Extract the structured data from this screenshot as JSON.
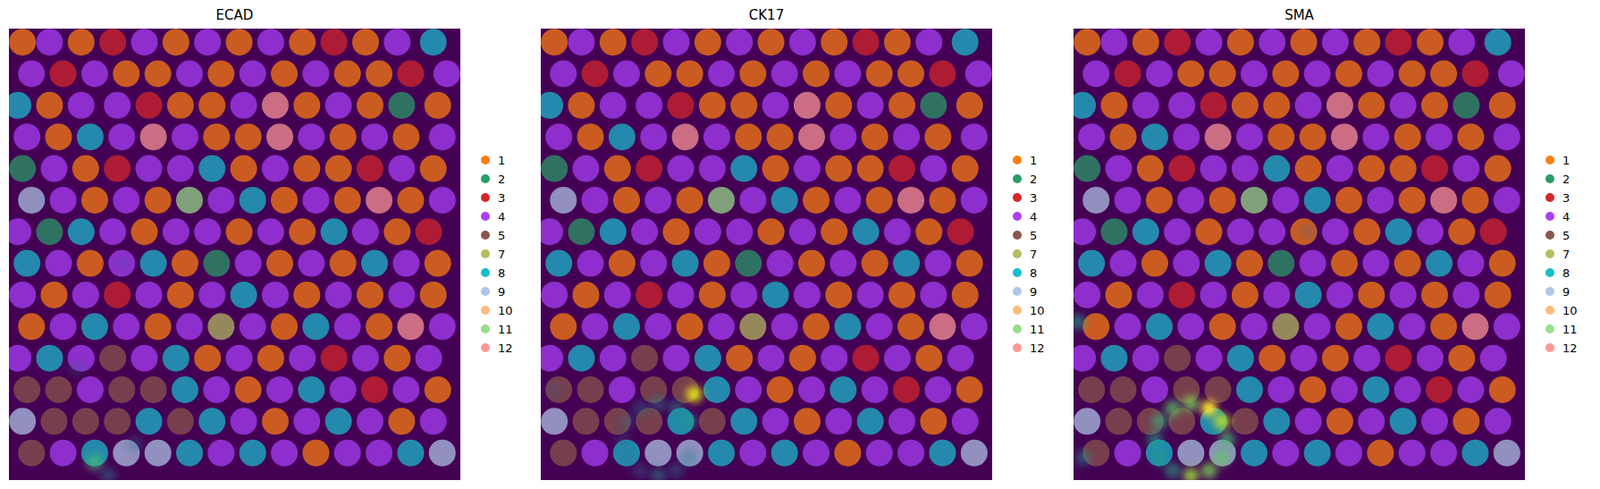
{
  "chart_data": {
    "type": "scatter",
    "xlim": [
      0,
      100
    ],
    "ylim": [
      0,
      100
    ],
    "tick_labels": false,
    "legend": "right",
    "panels": [
      {
        "title": "ECAD",
        "signal": {
          "x": [
            19,
            15,
            25,
            22,
            28
          ],
          "y": [
            96,
            75,
            52,
            99,
            92
          ],
          "intensity": [
            0.7,
            0.3,
            0.25,
            0.45,
            0.35
          ]
        }
      },
      {
        "title": "CK17",
        "signal": {
          "x": [
            34,
            32.9,
            30,
            26,
            22,
            19.1,
            18,
            19.1,
            22,
            26,
            30,
            32.9,
            3
          ],
          "y": [
            81,
            95,
            97.9,
            99,
            97.9,
            95,
            91,
            87,
            84.1,
            83,
            84.1,
            87,
            80
          ],
          "intensity": [
            0.95,
            0.45,
            0.4,
            0.5,
            0.35,
            0.35,
            0.3,
            0.35,
            0.4,
            0.45,
            0.5,
            0.55,
            0.3
          ]
        }
      },
      {
        "title": "SMA",
        "signal": {
          "x": [
            34,
            32.9,
            30,
            26,
            22,
            19.1,
            18,
            19.1,
            22,
            26,
            30,
            32.9,
            1,
            2,
            52
          ],
          "y": [
            91,
            95,
            97.9,
            99,
            97.9,
            95,
            91,
            87,
            84.1,
            83,
            84.1,
            87,
            65,
            95,
            45
          ],
          "intensity": [
            0.7,
            0.75,
            0.8,
            0.85,
            0.6,
            0.55,
            0.6,
            0.65,
            0.75,
            0.8,
            1.0,
            0.9,
            0.6,
            0.5,
            0.3
          ]
        }
      }
    ],
    "series": [
      {
        "name": "1",
        "color": "#ff7f0e",
        "x": [
          3,
          16,
          37,
          51,
          65,
          79,
          26,
          33,
          47,
          61,
          75,
          82,
          9,
          38,
          45,
          66,
          80,
          95,
          11,
          46,
          53,
          74,
          88,
          17,
          52,
          66,
          73,
          94,
          19,
          33,
          61,
          75,
          89,
          30,
          51,
          65,
          86,
          18,
          39,
          60,
          74,
          95,
          10,
          38,
          66,
          80,
          94,
          5,
          33,
          61,
          82,
          44,
          58,
          86,
          53,
          95,
          59,
          87,
          68
        ],
        "y": [
          3,
          3,
          3,
          3,
          3,
          3,
          10,
          10,
          10,
          10,
          10,
          10,
          17,
          17,
          17,
          17,
          17,
          17,
          24,
          24,
          24,
          24,
          24,
          31,
          31,
          31,
          31,
          31,
          38,
          38,
          38,
          38,
          38,
          45,
          45,
          45,
          45,
          52,
          52,
          52,
          52,
          52,
          59,
          59,
          59,
          59,
          59,
          66,
          66,
          66,
          66,
          73,
          73,
          73,
          80,
          80,
          87,
          87,
          94
        ]
      },
      {
        "name": "2",
        "color": "#279e68",
        "x": [
          87,
          3,
          9,
          46
        ],
        "y": [
          17,
          31,
          45,
          52
        ]
      },
      {
        "name": "3",
        "color": "#d62728",
        "x": [
          23,
          72,
          12,
          89,
          31,
          24,
          80,
          93,
          24,
          72,
          81
        ],
        "y": [
          3,
          3,
          10,
          10,
          17,
          31,
          31,
          45,
          59,
          73,
          80
        ]
      },
      {
        "name": "4",
        "color": "#aa40fc",
        "x": [
          9,
          30,
          44,
          58,
          86,
          5,
          19,
          40,
          54,
          68,
          97,
          16,
          24,
          52,
          73,
          4,
          25,
          39,
          67,
          81,
          96,
          10,
          31,
          38,
          59,
          87,
          12,
          26,
          47,
          68,
          96,
          2,
          23,
          37,
          44,
          58,
          79,
          11,
          25,
          53,
          67,
          88,
          3,
          17,
          31,
          45,
          59,
          73,
          87,
          12,
          26,
          40,
          54,
          75,
          96,
          2,
          16,
          30,
          51,
          65,
          79,
          93,
          18,
          46,
          60,
          74,
          88,
          52,
          66,
          80,
          94,
          12,
          47,
          61,
          75,
          82
        ],
        "y": [
          3,
          3,
          3,
          3,
          3,
          10,
          10,
          10,
          10,
          10,
          10,
          17,
          17,
          17,
          17,
          24,
          24,
          24,
          24,
          24,
          24,
          31,
          31,
          31,
          31,
          31,
          38,
          38,
          38,
          38,
          38,
          45,
          45,
          45,
          45,
          45,
          45,
          52,
          52,
          52,
          52,
          52,
          59,
          59,
          59,
          59,
          59,
          59,
          59,
          66,
          66,
          66,
          66,
          66,
          66,
          73,
          73,
          73,
          73,
          73,
          73,
          73,
          80,
          80,
          80,
          80,
          80,
          87,
          87,
          87,
          87,
          94,
          94,
          94,
          94,
          94
        ]
      },
      {
        "name": "5",
        "color": "#8c564b",
        "x": [
          23,
          4,
          11,
          25,
          32,
          10,
          17,
          24,
          38,
          5
        ],
        "y": [
          73,
          80,
          80,
          80,
          80,
          87,
          87,
          87,
          87,
          94
        ]
      },
      {
        "name": "7",
        "color": "#b5bd61",
        "x": [
          47
        ],
        "y": [
          66
        ]
      },
      {
        "name": "8",
        "color": "#17becf",
        "x": [
          94,
          2,
          18,
          45,
          54,
          16,
          72,
          4,
          32,
          81,
          52,
          19,
          68,
          9,
          37,
          39,
          67,
          31,
          45,
          73,
          19,
          40,
          54,
          89
        ],
        "y": [
          3,
          17,
          24,
          31,
          38,
          45,
          45,
          52,
          52,
          52,
          59,
          66,
          66,
          73,
          73,
          80,
          80,
          87,
          87,
          87,
          94,
          94,
          94,
          94
        ]
      },
      {
        "name": "9",
        "color": "#aec7e8",
        "x": [
          5,
          3,
          26,
          33,
          96
        ],
        "y": [
          38,
          87,
          94,
          94,
          94
        ]
      },
      {
        "name": "10",
        "color": "#ffbb78",
        "x": [],
        "y": []
      },
      {
        "name": "11",
        "color": "#98df8a",
        "x": [
          40
        ],
        "y": [
          38
        ]
      },
      {
        "name": "12",
        "color": "#ff9896",
        "x": [
          59,
          32,
          60,
          82,
          89
        ],
        "y": [
          17,
          24,
          24,
          38,
          66
        ]
      }
    ]
  }
}
